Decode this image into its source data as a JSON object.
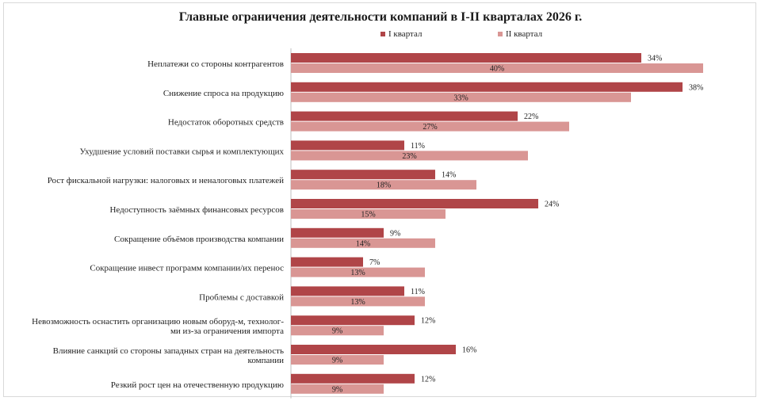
{
  "chart_data": {
    "type": "bar",
    "orientation": "horizontal",
    "title": "Главные ограничения деятельности компаний в I-II кварталах 2026 г.",
    "legend_position": "top",
    "grid": false,
    "xlim": [
      0,
      42
    ],
    "categories": [
      [
        "Неплатежи со стороны контрагентов"
      ],
      [
        "Снижение спроса на продукцию"
      ],
      [
        "Недостаток оборотных средств"
      ],
      [
        "Ухудшение условий поставки сырья и комплектующих"
      ],
      [
        "Рост фискальной нагрузки: налоговых и неналоговых платежей"
      ],
      [
        "Недоступность заёмных финансовых ресурсов"
      ],
      [
        "Сокращение объёмов производства компании"
      ],
      [
        "Сокращение инвест программ компании/их перенос"
      ],
      [
        "Проблемы с доставкой"
      ],
      [
        "Невозможность оснастить организацию новым оборуд-м, технолог-",
        "ми из-за ограничения импорта"
      ],
      [
        "Влияние санкций со стороны западных стран на деятельность",
        "компании"
      ],
      [
        "Резкий рост цен на отечественную продукцию"
      ]
    ],
    "series": [
      {
        "name": "I квартал",
        "color": "#b04548",
        "values": [
          34,
          38,
          22,
          11,
          14,
          24,
          9,
          7,
          11,
          12,
          16,
          12
        ],
        "labels": [
          "34%",
          "38%",
          "22%",
          "11%",
          "14%",
          "24%",
          "9%",
          "7%",
          "11%",
          "12%",
          "16%",
          "12%"
        ]
      },
      {
        "name": "II квартал",
        "color": "#d99694",
        "values": [
          40,
          33,
          27,
          23,
          18,
          15,
          14,
          13,
          13,
          9,
          9,
          9
        ],
        "labels": [
          "40%",
          "33%",
          "27%",
          "23%",
          "18%",
          "15%",
          "14%",
          "13%",
          "13%",
          "9%",
          "9%",
          "9%"
        ]
      }
    ]
  }
}
